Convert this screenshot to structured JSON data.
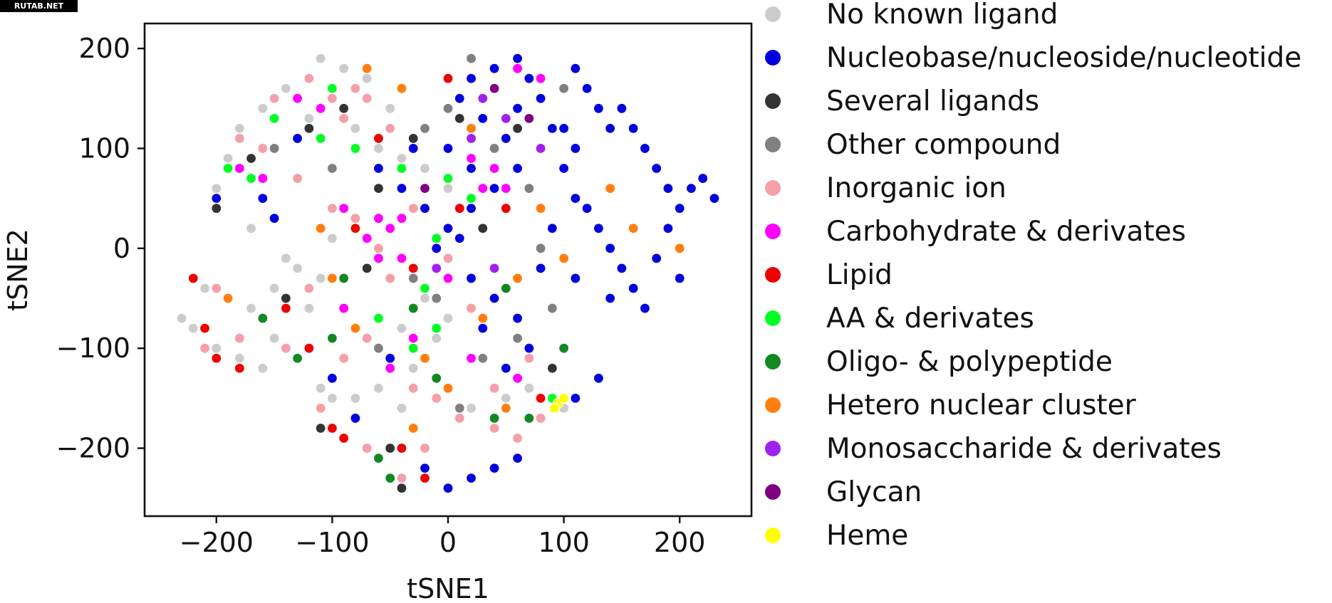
{
  "watermark": "RUTAB.NET",
  "chart_data": {
    "type": "scatter",
    "xlabel": "tSNE1",
    "ylabel": "tSNE2",
    "xlim": [
      -262,
      262
    ],
    "ylim": [
      -268,
      225
    ],
    "xticks": [
      -200,
      -100,
      0,
      100,
      200
    ],
    "yticks": [
      200,
      100,
      0,
      -100,
      -200
    ],
    "xtick_labels": [
      "−200",
      "−100",
      "0",
      "100",
      "200"
    ],
    "ytick_labels": [
      "200",
      "100",
      "0",
      "−100",
      "−200"
    ],
    "grid": false,
    "legend_position": "right, outside plot",
    "series": [
      {
        "name": "No known ligand",
        "color": "#cccccc",
        "points": [
          [
            -220,
            -80
          ],
          [
            -200,
            -100
          ],
          [
            -180,
            -110
          ],
          [
            -160,
            -120
          ],
          [
            -210,
            -40
          ],
          [
            -150,
            -40
          ],
          [
            -130,
            -20
          ],
          [
            -110,
            -30
          ],
          [
            -90,
            -60
          ],
          [
            -120,
            -60
          ],
          [
            -170,
            -60
          ],
          [
            -140,
            -10
          ],
          [
            -100,
            10
          ],
          [
            -80,
            20
          ],
          [
            -60,
            30
          ],
          [
            -110,
            -140
          ],
          [
            -100,
            -150
          ],
          [
            -80,
            -150
          ],
          [
            -90,
            -190
          ],
          [
            -60,
            -140
          ],
          [
            -40,
            -160
          ],
          [
            -30,
            -120
          ],
          [
            -10,
            -90
          ],
          [
            20,
            -160
          ],
          [
            50,
            -150
          ],
          [
            70,
            -140
          ],
          [
            100,
            -160
          ],
          [
            -20,
            -50
          ],
          [
            0,
            -70
          ],
          [
            -40,
            -80
          ],
          [
            -160,
            140
          ],
          [
            -140,
            160
          ],
          [
            -110,
            190
          ],
          [
            -90,
            180
          ],
          [
            -70,
            170
          ],
          [
            -50,
            140
          ],
          [
            -180,
            120
          ],
          [
            -200,
            60
          ],
          [
            -190,
            90
          ],
          [
            -170,
            20
          ],
          [
            -150,
            -90
          ],
          [
            -230,
            -70
          ],
          [
            -120,
            130
          ],
          [
            -80,
            120
          ],
          [
            -60,
            100
          ],
          [
            -40,
            90
          ],
          [
            -20,
            80
          ],
          [
            0,
            60
          ]
        ]
      },
      {
        "name": "Nucleobase/nucleoside/nucleotide",
        "color": "#0000dd",
        "points": [
          [
            120,
            40
          ],
          [
            130,
            20
          ],
          [
            110,
            50
          ],
          [
            140,
            0
          ],
          [
            150,
            -20
          ],
          [
            160,
            -40
          ],
          [
            180,
            -10
          ],
          [
            190,
            20
          ],
          [
            200,
            40
          ],
          [
            210,
            60
          ],
          [
            220,
            70
          ],
          [
            230,
            50
          ],
          [
            200,
            -30
          ],
          [
            170,
            -60
          ],
          [
            140,
            -50
          ],
          [
            110,
            -30
          ],
          [
            100,
            80
          ],
          [
            90,
            120
          ],
          [
            80,
            150
          ],
          [
            70,
            170
          ],
          [
            60,
            190
          ],
          [
            40,
            180
          ],
          [
            20,
            170
          ],
          [
            10,
            150
          ],
          [
            30,
            130
          ],
          [
            50,
            110
          ],
          [
            60,
            80
          ],
          [
            40,
            60
          ],
          [
            20,
            40
          ],
          [
            10,
            10
          ],
          [
            20,
            -30
          ],
          [
            40,
            -50
          ],
          [
            60,
            -70
          ],
          [
            70,
            -100
          ],
          [
            50,
            -120
          ],
          [
            80,
            -20
          ],
          [
            90,
            20
          ],
          [
            160,
            120
          ],
          [
            150,
            140
          ],
          [
            170,
            100
          ],
          [
            180,
            80
          ],
          [
            190,
            60
          ],
          [
            110,
            180
          ],
          [
            120,
            160
          ],
          [
            130,
            140
          ],
          [
            140,
            120
          ],
          [
            30,
            -80
          ],
          [
            0,
            20
          ],
          [
            -10,
            0
          ],
          [
            -20,
            40
          ],
          [
            -40,
            60
          ],
          [
            -60,
            80
          ],
          [
            -30,
            100
          ],
          [
            0,
            100
          ],
          [
            20,
            80
          ],
          [
            60,
            140
          ],
          [
            100,
            120
          ],
          [
            110,
            100
          ],
          [
            -150,
            30
          ],
          [
            -160,
            50
          ],
          [
            40,
            -220
          ],
          [
            60,
            -210
          ],
          [
            20,
            -230
          ],
          [
            -20,
            -220
          ],
          [
            0,
            -240
          ],
          [
            -80,
            -170
          ],
          [
            -100,
            -130
          ],
          [
            -50,
            -110
          ],
          [
            130,
            -130
          ],
          [
            110,
            -150
          ],
          [
            -200,
            50
          ],
          [
            -130,
            110
          ]
        ]
      },
      {
        "name": "Several ligands",
        "color": "#333333",
        "points": [
          [
            -90,
            140
          ],
          [
            -120,
            120
          ],
          [
            -60,
            60
          ],
          [
            -30,
            110
          ],
          [
            10,
            130
          ],
          [
            60,
            120
          ],
          [
            -170,
            90
          ],
          [
            -200,
            40
          ],
          [
            -50,
            -200
          ],
          [
            -40,
            -240
          ],
          [
            90,
            -120
          ],
          [
            -110,
            -180
          ],
          [
            -200,
            -110
          ],
          [
            -140,
            -50
          ],
          [
            -70,
            -20
          ],
          [
            30,
            20
          ]
        ]
      },
      {
        "name": "Other compound",
        "color": "#808080",
        "points": [
          [
            -20,
            120
          ],
          [
            0,
            140
          ],
          [
            40,
            100
          ],
          [
            70,
            60
          ],
          [
            80,
            0
          ],
          [
            -30,
            -30
          ],
          [
            -10,
            -50
          ],
          [
            30,
            -110
          ],
          [
            60,
            -90
          ],
          [
            90,
            -60
          ],
          [
            -60,
            -100
          ],
          [
            100,
            160
          ],
          [
            20,
            190
          ],
          [
            -150,
            100
          ],
          [
            -100,
            80
          ],
          [
            10,
            -160
          ]
        ]
      },
      {
        "name": "Inorganic ion",
        "color": "#f4a0a8",
        "points": [
          [
            -100,
            150
          ],
          [
            -90,
            130
          ],
          [
            -70,
            150
          ],
          [
            -120,
            170
          ],
          [
            -150,
            150
          ],
          [
            -180,
            110
          ],
          [
            -160,
            100
          ],
          [
            -130,
            70
          ],
          [
            -100,
            40
          ],
          [
            -80,
            30
          ],
          [
            -60,
            0
          ],
          [
            -50,
            -30
          ],
          [
            -70,
            -90
          ],
          [
            -90,
            -110
          ],
          [
            -110,
            -160
          ],
          [
            -70,
            -200
          ],
          [
            -30,
            -140
          ],
          [
            -10,
            -150
          ],
          [
            10,
            -170
          ],
          [
            40,
            -180
          ],
          [
            60,
            -190
          ],
          [
            80,
            -170
          ],
          [
            -40,
            -230
          ],
          [
            -20,
            -200
          ],
          [
            -200,
            -40
          ],
          [
            -180,
            -90
          ],
          [
            -210,
            -100
          ],
          [
            -80,
            160
          ],
          [
            -50,
            120
          ],
          [
            -30,
            40
          ],
          [
            0,
            -10
          ],
          [
            20,
            -60
          ],
          [
            40,
            -140
          ],
          [
            70,
            -110
          ],
          [
            -120,
            -40
          ],
          [
            -140,
            -100
          ]
        ]
      },
      {
        "name": "Carbohydrate & derivates",
        "color": "#ff00ff",
        "points": [
          [
            -60,
            30
          ],
          [
            -50,
            20
          ],
          [
            -40,
            30
          ],
          [
            -70,
            10
          ],
          [
            -60,
            -10
          ],
          [
            -40,
            -10
          ],
          [
            -90,
            40
          ],
          [
            30,
            60
          ],
          [
            40,
            80
          ],
          [
            20,
            90
          ],
          [
            50,
            60
          ],
          [
            60,
            180
          ],
          [
            80,
            170
          ],
          [
            -130,
            150
          ],
          [
            -110,
            140
          ],
          [
            -160,
            70
          ],
          [
            -30,
            -90
          ],
          [
            -50,
            -120
          ],
          [
            0,
            -30
          ],
          [
            20,
            -110
          ],
          [
            60,
            -130
          ],
          [
            -180,
            80
          ],
          [
            -90,
            -60
          ]
        ]
      },
      {
        "name": "Lipid",
        "color": "#ee0000",
        "points": [
          [
            -220,
            -30
          ],
          [
            -210,
            -80
          ],
          [
            -200,
            -110
          ],
          [
            -180,
            -120
          ],
          [
            -100,
            -180
          ],
          [
            -90,
            -190
          ],
          [
            -40,
            -200
          ],
          [
            -20,
            -230
          ],
          [
            -80,
            20
          ],
          [
            -30,
            -20
          ],
          [
            0,
            170
          ],
          [
            10,
            40
          ],
          [
            50,
            40
          ],
          [
            -140,
            -60
          ],
          [
            -120,
            -100
          ],
          [
            80,
            -150
          ],
          [
            -60,
            110
          ]
        ]
      },
      {
        "name": "AA & derivates",
        "color": "#00ff22",
        "points": [
          [
            -190,
            80
          ],
          [
            -170,
            70
          ],
          [
            -100,
            160
          ],
          [
            -80,
            100
          ],
          [
            -60,
            -70
          ],
          [
            -30,
            -100
          ],
          [
            -10,
            -80
          ],
          [
            0,
            70
          ],
          [
            20,
            50
          ],
          [
            -40,
            80
          ],
          [
            -110,
            110
          ],
          [
            90,
            -150
          ],
          [
            -20,
            -40
          ],
          [
            -150,
            130
          ],
          [
            -10,
            10
          ]
        ]
      },
      {
        "name": "Oligo- & polypeptide",
        "color": "#118822",
        "points": [
          [
            -160,
            -70
          ],
          [
            -130,
            -110
          ],
          [
            -100,
            -90
          ],
          [
            -60,
            -210
          ],
          [
            -50,
            -230
          ],
          [
            -10,
            -130
          ],
          [
            40,
            -170
          ],
          [
            70,
            -170
          ],
          [
            -90,
            -30
          ],
          [
            -30,
            -60
          ],
          [
            50,
            -40
          ],
          [
            100,
            -100
          ]
        ]
      },
      {
        "name": "Hetero nuclear cluster",
        "color": "#ff7f0e",
        "points": [
          [
            -70,
            180
          ],
          [
            -40,
            160
          ],
          [
            -100,
            -30
          ],
          [
            -80,
            -80
          ],
          [
            -20,
            -110
          ],
          [
            0,
            -140
          ],
          [
            30,
            -70
          ],
          [
            60,
            -30
          ],
          [
            80,
            40
          ],
          [
            100,
            -10
          ],
          [
            160,
            20
          ],
          [
            200,
            0
          ],
          [
            140,
            60
          ],
          [
            -110,
            20
          ],
          [
            -190,
            -50
          ],
          [
            20,
            120
          ],
          [
            50,
            -160
          ],
          [
            -30,
            -180
          ]
        ]
      },
      {
        "name": "Monosaccharide & derivates",
        "color": "#a020f0",
        "points": [
          [
            30,
            150
          ],
          [
            50,
            130
          ],
          [
            80,
            100
          ],
          [
            20,
            110
          ],
          [
            -10,
            -20
          ],
          [
            40,
            -20
          ]
        ]
      },
      {
        "name": "Glycan",
        "color": "#800080",
        "points": [
          [
            40,
            160
          ],
          [
            70,
            130
          ],
          [
            -20,
            60
          ]
        ]
      },
      {
        "name": "Heme",
        "color": "#ffff00",
        "points": [
          [
            95,
            -155
          ],
          [
            100,
            -150
          ],
          [
            92,
            -160
          ]
        ]
      }
    ]
  }
}
